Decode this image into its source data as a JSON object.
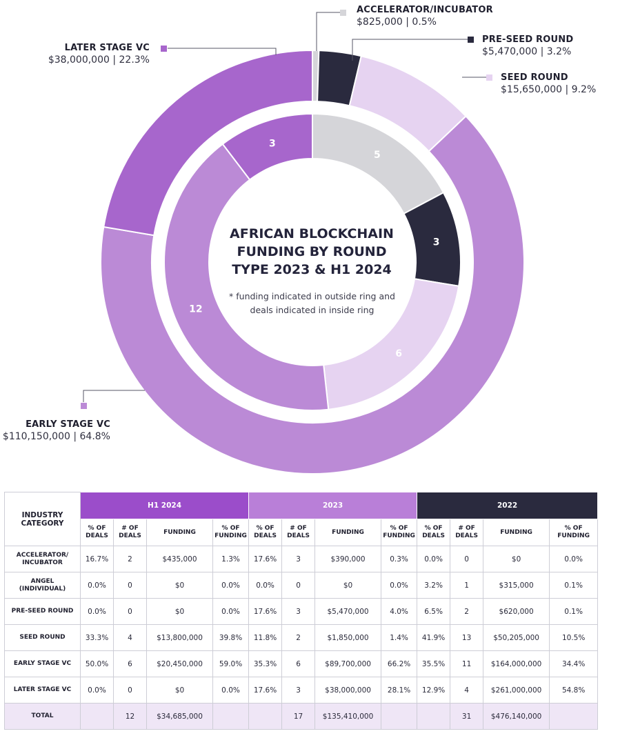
{
  "chart_data": {
    "type": "donut",
    "title": "AFRICAN BLOCKCHAIN FUNDING BY ROUND TYPE 2023 & H1 2024",
    "note": "* funding indicated in outside ring and deals indicated in inside ring",
    "outer_ring": [
      {
        "name": "ACCELERATOR/INCUBATOR",
        "funding": "$825,000",
        "percent": "0.5%",
        "value": 825000,
        "color": "#d5d5d9"
      },
      {
        "name": "PRE-SEED ROUND",
        "funding": "$5,470,000",
        "percent": "3.2%",
        "value": 5470000,
        "color": "#2a2a3e"
      },
      {
        "name": "SEED ROUND",
        "funding": "$15,650,000",
        "percent": "9.2%",
        "value": 15650000,
        "color": "#e6d3f1"
      },
      {
        "name": "EARLY STAGE VC",
        "funding": "$110,150,000",
        "percent": "64.8%",
        "value": 110150000,
        "color": "#bb8ad6"
      },
      {
        "name": "LATER STAGE VC",
        "funding": "$38,000,000",
        "percent": "22.3%",
        "value": 38000000,
        "color": "#a766cc"
      }
    ],
    "inner_ring": [
      {
        "name": "ACCELERATOR/INCUBATOR",
        "deals": 5,
        "color": "#d5d5d9"
      },
      {
        "name": "PRE-SEED ROUND",
        "deals": 3,
        "color": "#2a2a3e"
      },
      {
        "name": "SEED ROUND",
        "deals": 6,
        "color": "#e6d3f1"
      },
      {
        "name": "EARLY STAGE VC",
        "deals": 12,
        "color": "#bb8ad6"
      },
      {
        "name": "LATER STAGE VC",
        "deals": 3,
        "color": "#a766cc"
      }
    ]
  },
  "labels": {
    "accelerator": {
      "name": "ACCELERATOR/INCUBATOR",
      "val": "$825,000 | 0.5%"
    },
    "preseed": {
      "name": "PRE-SEED ROUND",
      "val": "$5,470,000 | 3.2%"
    },
    "seed": {
      "name": "SEED ROUND",
      "val": "$15,650,000 | 9.2%"
    },
    "later": {
      "name": "LATER STAGE VC",
      "val": "$38,000,000 | 22.3%"
    },
    "early": {
      "name": "EARLY STAGE VC",
      "val": "$110,150,000 | 64.8%"
    }
  },
  "center": {
    "title_lines": [
      "AFRICAN BLOCKCHAIN",
      "FUNDING BY ROUND",
      "TYPE 2023 & H1 2024"
    ],
    "note_lines": [
      "* funding indicated in outside ring and",
      "deals indicated in inside ring"
    ]
  },
  "table": {
    "corner_lines": [
      "INDUSTRY",
      "CATEGORY"
    ],
    "groups": [
      {
        "label": "H1 2024",
        "color": "#9b4dca"
      },
      {
        "label": "2023",
        "color": "#b97fd8"
      },
      {
        "label": "2022",
        "color": "#2a2a3e"
      }
    ],
    "sub_headers": [
      "% OF DEALS",
      "# OF DEALS",
      "FUNDING",
      "% OF FUNDING"
    ],
    "rows": [
      {
        "category": "ACCELERATOR/ INCUBATOR",
        "cells": [
          "16.7%",
          "2",
          "$435,000",
          "1.3%",
          "17.6%",
          "3",
          "$390,000",
          "0.3%",
          "0.0%",
          "0",
          "$0",
          "0.0%"
        ]
      },
      {
        "category": "ANGEL (INDIVIDUAL)",
        "cells": [
          "0.0%",
          "0",
          "$0",
          "0.0%",
          "0.0%",
          "0",
          "$0",
          "0.0%",
          "3.2%",
          "1",
          "$315,000",
          "0.1%"
        ]
      },
      {
        "category": "PRE-SEED ROUND",
        "cells": [
          "0.0%",
          "0",
          "$0",
          "0.0%",
          "17.6%",
          "3",
          "$5,470,000",
          "4.0%",
          "6.5%",
          "2",
          "$620,000",
          "0.1%"
        ]
      },
      {
        "category": "SEED ROUND",
        "cells": [
          "33.3%",
          "4",
          "$13,800,000",
          "39.8%",
          "11.8%",
          "2",
          "$1,850,000",
          "1.4%",
          "41.9%",
          "13",
          "$50,205,000",
          "10.5%"
        ]
      },
      {
        "category": "EARLY STAGE VC",
        "cells": [
          "50.0%",
          "6",
          "$20,450,000",
          "59.0%",
          "35.3%",
          "6",
          "$89,700,000",
          "66.2%",
          "35.5%",
          "11",
          "$164,000,000",
          "34.4%"
        ]
      },
      {
        "category": "LATER STAGE VC",
        "cells": [
          "0.0%",
          "0",
          "$0",
          "0.0%",
          "17.6%",
          "3",
          "$38,000,000",
          "28.1%",
          "12.9%",
          "4",
          "$261,000,000",
          "54.8%"
        ]
      }
    ],
    "total": {
      "category": "TOTAL",
      "cells": [
        "",
        "12",
        "$34,685,000",
        "",
        "",
        "17",
        "$135,410,000",
        "",
        "",
        "31",
        "$476,140,000",
        ""
      ]
    }
  }
}
